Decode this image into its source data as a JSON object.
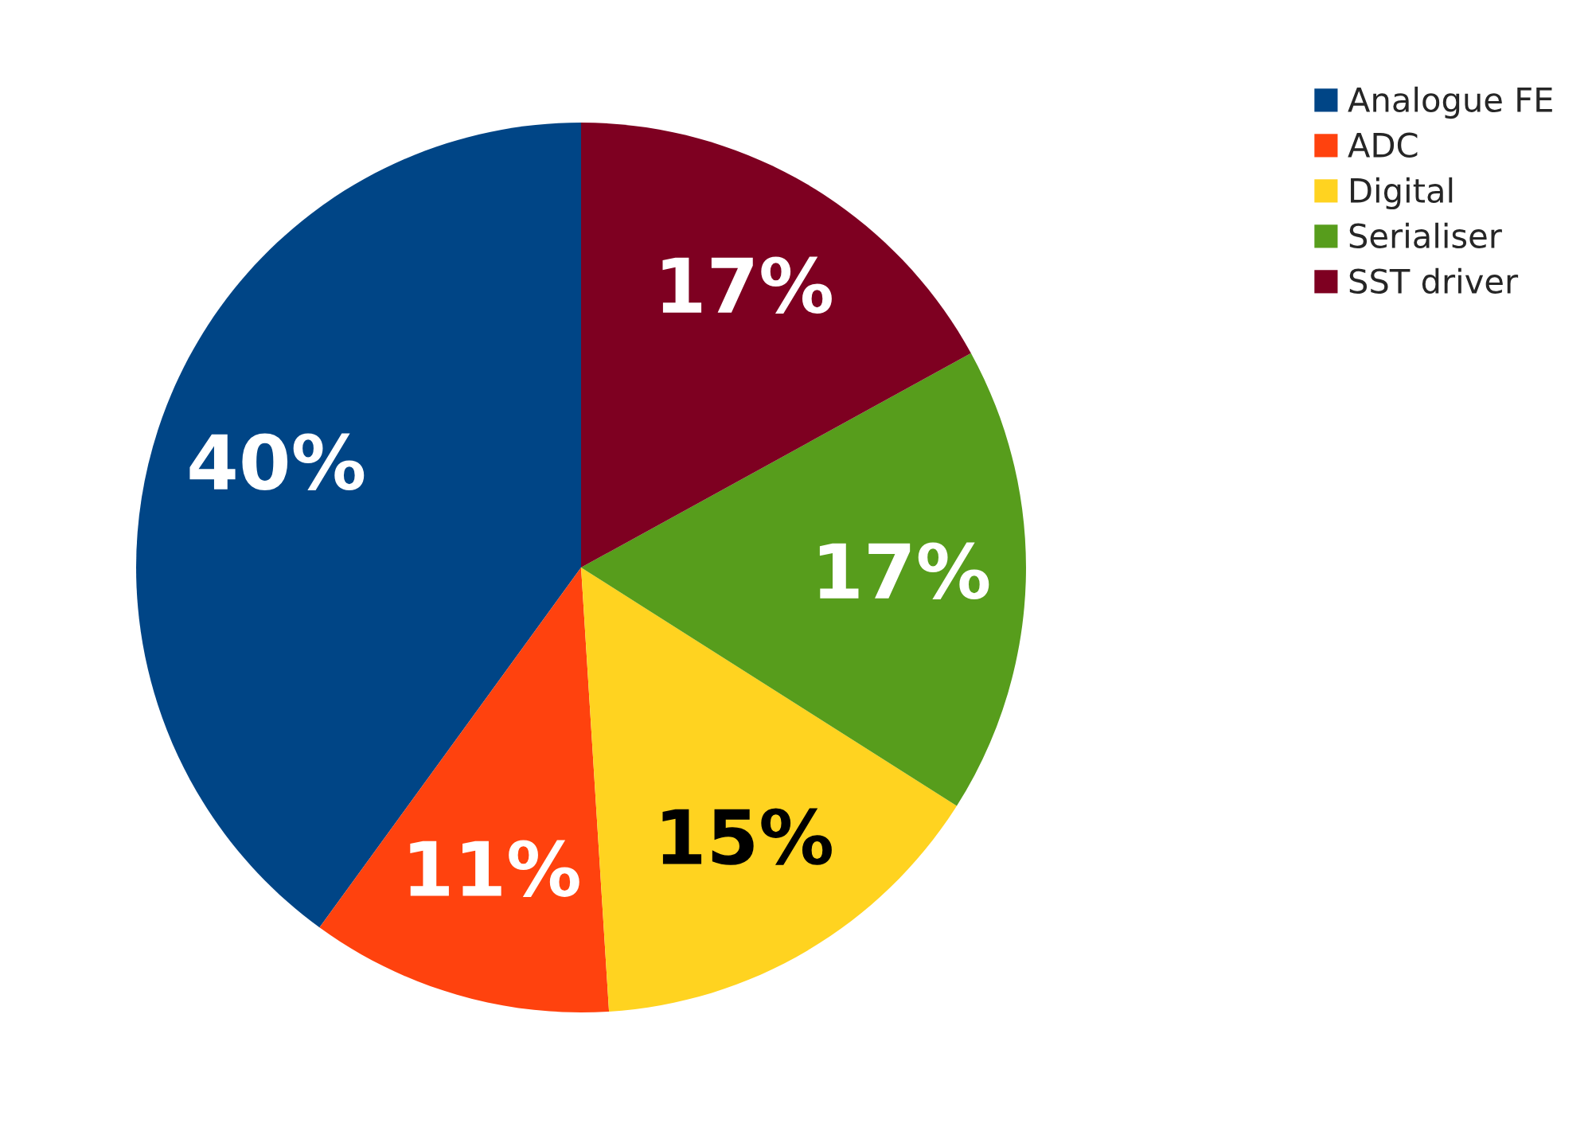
{
  "chart_data": {
    "type": "pie",
    "categories": [
      "Analogue FE",
      "ADC",
      "Digital",
      "Serialiser",
      "SST driver"
    ],
    "values": [
      40,
      11,
      15,
      17,
      17
    ],
    "colors": [
      "#004586",
      "#ff420e",
      "#ffd320",
      "#579d1c",
      "#7e0021"
    ],
    "value_labels": [
      "40%",
      "11%",
      "15%",
      "17%",
      "17%"
    ],
    "legend": "top right"
  }
}
